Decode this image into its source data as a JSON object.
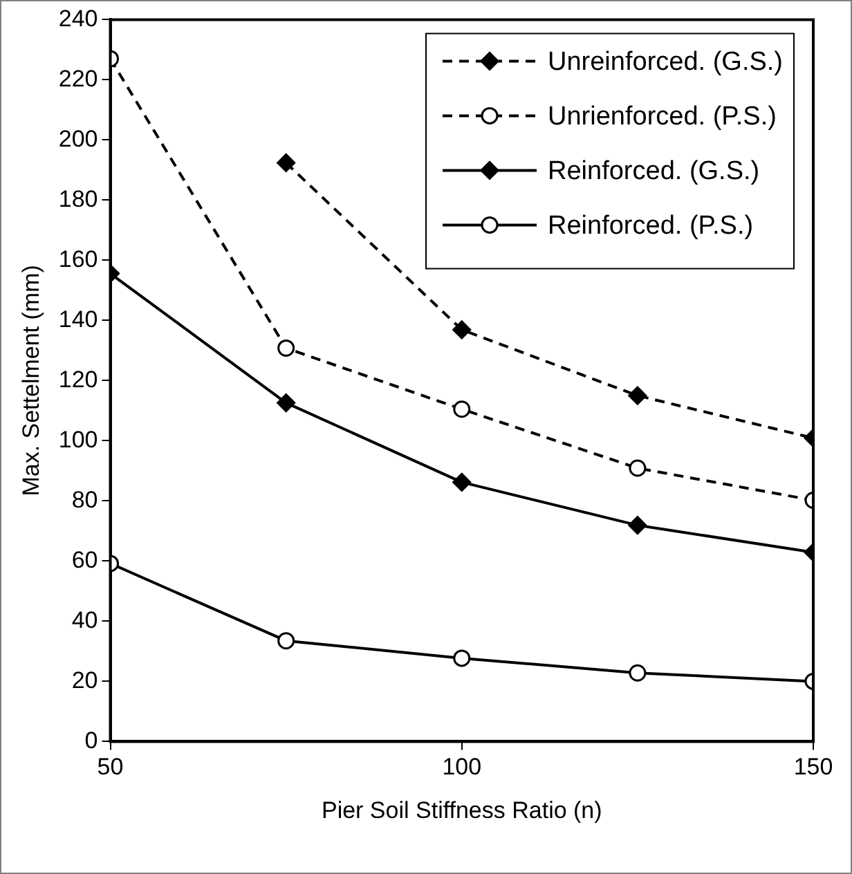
{
  "chart_data": {
    "type": "line",
    "xlabel": "Pier Soil Stiffness Ratio (n)",
    "ylabel": "Max. Settelment (mm)",
    "x": [
      50,
      75,
      100,
      125,
      150
    ],
    "series": [
      {
        "name": "Unreinforced. (G.S.)",
        "color": "#000000",
        "values": [
          null,
          192.4,
          136.9,
          115,
          100.9
        ],
        "marker": "diamond",
        "line_style": "dashed"
      },
      {
        "name": "Unrienforced. (P.S.)",
        "color": "#000000",
        "values": [
          227,
          130.8,
          110.5,
          90.9,
          80.2
        ],
        "marker": "circle",
        "line_style": "dashed"
      },
      {
        "name": "Reinforced. (G.S.)",
        "color": "#000000",
        "values": [
          155.6,
          112.6,
          86.2,
          71.9,
          62.9
        ],
        "marker": "diamond",
        "line_style": "solid"
      },
      {
        "name": "Reinforced. (P.S.)",
        "color": "#000000",
        "values": [
          59.2,
          33.5,
          27.7,
          22.8,
          20
        ],
        "marker": "circle",
        "line_style": "solid"
      }
    ],
    "xlim": [
      50,
      150
    ],
    "xticks": [
      50,
      100,
      150
    ],
    "ylim": [
      0,
      240
    ],
    "yticks": [
      0,
      20,
      40,
      60,
      80,
      100,
      120,
      140,
      160,
      180,
      200,
      220,
      240
    ],
    "grid": false,
    "legend": "top right"
  }
}
